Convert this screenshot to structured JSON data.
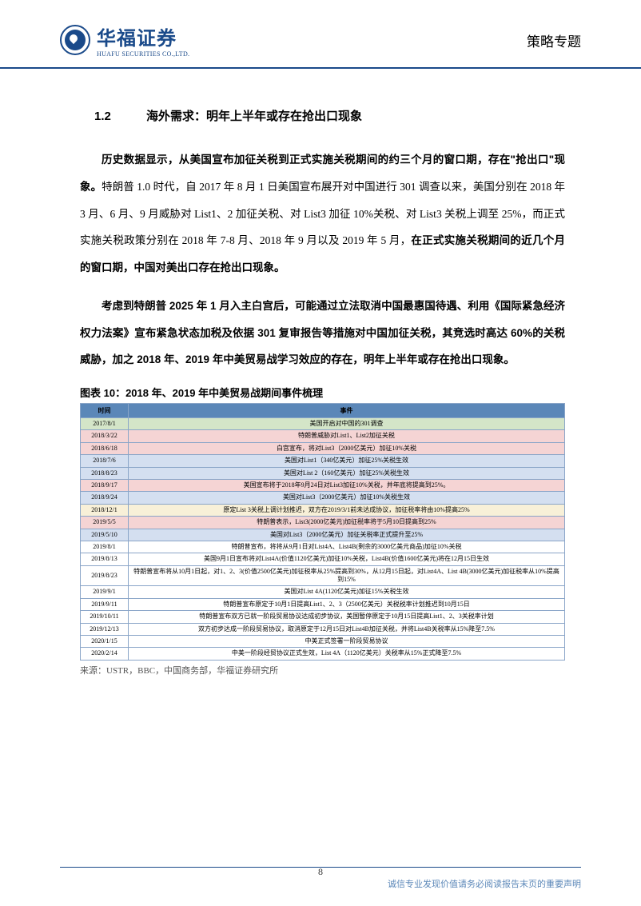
{
  "header": {
    "logo_cn": "华福证券",
    "logo_en": "HUAFU SECURITIES CO.,LTD.",
    "right_text": "策略专题"
  },
  "section": {
    "number": "1.2",
    "title": "海外需求：明年上半年或存在抢出口现象"
  },
  "para1": {
    "lead": "历史数据显示，从美国宣布加征关税到正式实施关税期间的约三个月的窗口期，存在\"抢出口\"现象。",
    "rest": "特朗普 1.0 时代，自 2017 年 8 月 1 日美国宣布展开对中国进行 301 调查以来，美国分别在 2018 年 3 月、6 月、9 月威胁对 List1、2 加征关税、对 List3 加征 10%关税、对 List3 关税上调至 25%，而正式实施关税政策分别在 2018 年 7-8 月、2018 年 9 月以及 2019 年 5 月，",
    "tail": "在正式实施关税期间的近几个月的窗口期，中国对美出口存在抢出口现象。"
  },
  "para2": {
    "lead": "考虑到特朗普 2025 年 1 月入主白宫后，可能通过立法取消中国最惠国待遇、利用《国际紧急经济权力法案》宣布紧急状态加税及依据 301 复审报告等措施对中国加征关税，其竞选时高达 60%的关税威胁，加之 2018 年、2019 年中美贸易战学习效应的存在，明年上半年或存在抢出口现象。"
  },
  "table": {
    "title": "图表 10：2018 年、2019 年中美贸易战期间事件梳理",
    "header_time": "时间",
    "header_event": "事件",
    "source": "来源：USTR，BBC，中国商务部，华福证券研究所",
    "rows": [
      {
        "date": "2017/8/1",
        "event": "美国开启对中国的301调查",
        "bg": "#d4e5c8"
      },
      {
        "date": "2018/3/22",
        "event": "特朗普威胁对List1、List2加征关税",
        "bg": "#f5d4d4"
      },
      {
        "date": "2018/6/18",
        "event": "白宫宣布，将对List3（2000亿美元）加征10%关税",
        "bg": "#f5d4d4"
      },
      {
        "date": "2018/7/6",
        "event": "美国对List1（340亿美元）加征25%关税生效",
        "bg": "#d4dff0"
      },
      {
        "date": "2018/8/23",
        "event": "美国对List 2（160亿美元）加征25%关税生效",
        "bg": "#d4dff0"
      },
      {
        "date": "2018/9/17",
        "event": "美国宣布将于2018年9月24日对List3加征10%关税，并年底将提高到25%。",
        "bg": "#f5d4d4"
      },
      {
        "date": "2018/9/24",
        "event": "美国对List3（2000亿美元）加征10%关税生效",
        "bg": "#d4dff0"
      },
      {
        "date": "2018/12/1",
        "event": "原定List 3关税上调计划推迟，双方在2019/3/1前未达成协议，加征税率将由10%提高25%",
        "bg": "#f8f0d8"
      },
      {
        "date": "2019/5/5",
        "event": "特朗普表示，List3(2000亿美元)加征税率将于5月10日提高到25%",
        "bg": "#f5d4d4"
      },
      {
        "date": "2019/5/10",
        "event": "美国对List3（2000亿美元）加征关税率正式提升至25%",
        "bg": "#d4dff0"
      },
      {
        "date": "2019/8/1",
        "event": "特朗普宣布，将将从9月1日对List4A、List4B(剩余的3000亿美元商品)加征10%关税",
        "bg": "#ffffff"
      },
      {
        "date": "2019/8/13",
        "event": "美国9月1日宣布将对List4A(价值1120亿美元)加征10%关税，List4B(价值1600亿美元)将在12月15日生效",
        "bg": "#ffffff"
      },
      {
        "date": "2019/8/23",
        "event": "特朗普宣布将从10月1日起，对1、2、3(价值2500亿美元)加征税率从25%提高到30%，从12月15日起，对List4A、List 4B(3000亿美元)加征税率从10%提高到15%",
        "bg": "#ffffff"
      },
      {
        "date": "2019/9/1",
        "event": "美国对List 4A(1120亿美元)加征15%关税生效",
        "bg": "#ffffff"
      },
      {
        "date": "2019/9/11",
        "event": "特朗普宣布原定于10月1日提高List1、2、3（2500亿美元）关税税率计划推迟到10月15日",
        "bg": "#ffffff"
      },
      {
        "date": "2019/10/11",
        "event": "特朗普宣布双方已就一阶段贸易协议达成初步协议，美国暂停原定于10月15日提高List1、2、3关税率计划",
        "bg": "#ffffff"
      },
      {
        "date": "2019/12/13",
        "event": "双方初步达成一阶段贸易协议，取消原定于12月15日对List4B加征关税，并将List4B关税率从15%降至7.5%",
        "bg": "#ffffff"
      },
      {
        "date": "2020/1/15",
        "event": "中美正式签署一阶段贸易协议",
        "bg": "#ffffff"
      },
      {
        "date": "2020/2/14",
        "event": "中美一阶段经贸协议正式生效，List 4A（1120亿美元）关税率从15%正式降至7.5%",
        "bg": "#ffffff"
      }
    ]
  },
  "page_number": "8",
  "footer_note": "诚信专业发现价值请务必阅读报告末页的重要声明"
}
